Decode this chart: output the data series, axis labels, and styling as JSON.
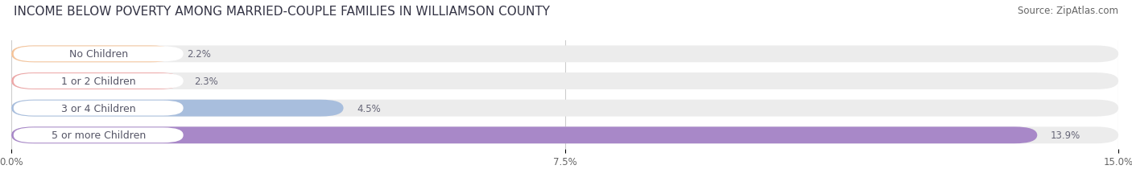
{
  "title": "INCOME BELOW POVERTY AMONG MARRIED-COUPLE FAMILIES IN WILLIAMSON COUNTY",
  "source": "Source: ZipAtlas.com",
  "categories": [
    "No Children",
    "1 or 2 Children",
    "3 or 4 Children",
    "5 or more Children"
  ],
  "values": [
    2.2,
    2.3,
    4.5,
    13.9
  ],
  "bar_colors": [
    "#f5c49a",
    "#eda8a8",
    "#a8bedd",
    "#a888c8"
  ],
  "label_text_color": "#555566",
  "xlim": [
    0,
    15.0
  ],
  "xticks": [
    0.0,
    7.5,
    15.0
  ],
  "xtick_labels": [
    "0.0%",
    "7.5%",
    "15.0%"
  ],
  "background_color": "#ffffff",
  "bar_background_color": "#ececec",
  "title_fontsize": 11,
  "source_fontsize": 8.5,
  "label_fontsize": 9,
  "value_fontsize": 8.5
}
